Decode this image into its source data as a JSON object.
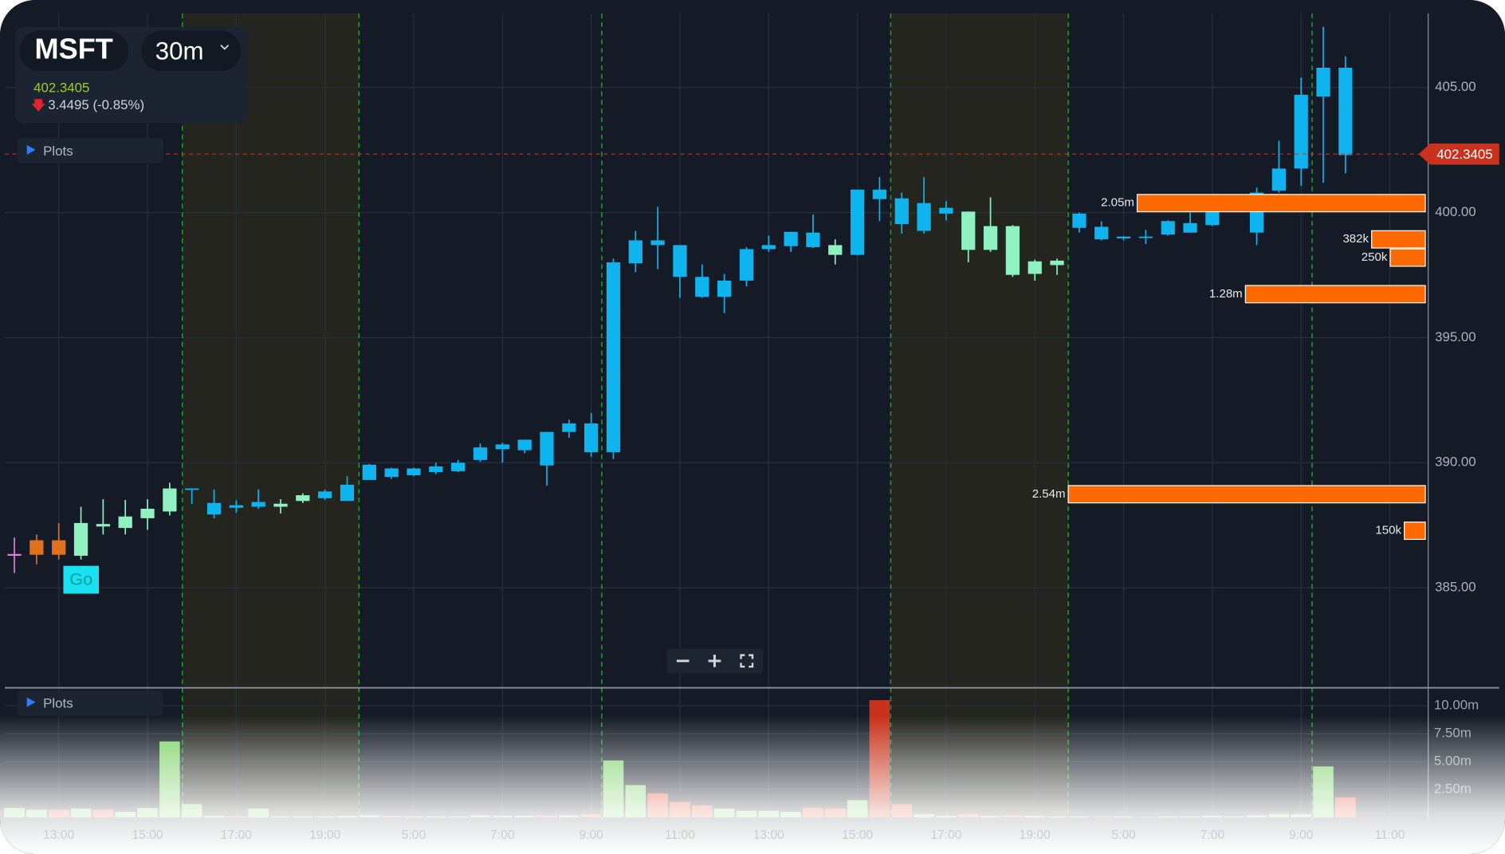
{
  "header": {
    "symbol": "MSFT",
    "interval": "30m",
    "change": "3.4495 (-0.85%)"
  },
  "panel_labels": [
    "Plots",
    "Plots"
  ],
  "signal_label": "Go",
  "chart_data": [
    {
      "type": "candlestick",
      "open": [
        386.35,
        386.9,
        386.32,
        386.28,
        387.45,
        387.39,
        387.78,
        388.05,
        388.93,
        388.39,
        388.2,
        388.24,
        388.24,
        388.47,
        388.58,
        388.47,
        389.31,
        389.77,
        389.5,
        389.62,
        389.66,
        390.11,
        390.54,
        390.5,
        391.23,
        391.23,
        391.57,
        390.42,
        397.97,
        398.89,
        398.7,
        397.43,
        396.63,
        397.28,
        398.54,
        398.66,
        399.2,
        398.7,
        398.31,
        400.92,
        400.57,
        400.38,
        400.19,
        400.04,
        398.51,
        399.46,
        397.55,
        397.9,
        399.96,
        399.43,
        398.97,
        399.04,
        399.12,
        399.2,
        399.5,
        400.15,
        399.2,
        400.88,
        401.76,
        404.64,
        405.79,
        null,
        null
      ],
      "high": [
        387.01,
        387.13,
        387.59,
        388.24,
        388.54,
        388.51,
        388.54,
        389.2,
        388.97,
        388.93,
        388.5,
        388.93,
        388.54,
        388.78,
        388.93,
        389.46,
        389.95,
        389.8,
        389.8,
        390.0,
        390.11,
        390.77,
        390.8,
        390.92,
        391.23,
        391.72,
        391.99,
        398.16,
        399.27,
        400.23,
        398.7,
        397.93,
        397.55,
        398.62,
        399.08,
        399.23,
        399.92,
        398.93,
        400.92,
        401.42,
        400.8,
        401.42,
        400.46,
        400.04,
        400.61,
        399.5,
        398.12,
        398.16,
        400.0,
        399.65,
        399.06,
        399.31,
        399.69,
        400.0,
        400.42,
        400.61,
        401.0,
        402.87,
        405.4,
        407.43,
        406.25,
        null,
        null
      ],
      "low": [
        385.59,
        385.94,
        386.13,
        386.13,
        387.13,
        387.13,
        387.32,
        387.89,
        388.35,
        387.78,
        388.0,
        388.16,
        387.97,
        388.39,
        388.51,
        388.47,
        389.31,
        389.35,
        389.46,
        389.54,
        389.62,
        390.04,
        390.0,
        390.38,
        389.08,
        391.0,
        390.23,
        390.15,
        397.62,
        397.74,
        396.59,
        396.59,
        395.98,
        397.05,
        398.43,
        398.43,
        398.58,
        397.93,
        398.28,
        399.66,
        399.16,
        399.16,
        399.69,
        398.01,
        398.43,
        397.43,
        397.28,
        397.51,
        399.2,
        398.89,
        398.89,
        398.74,
        399.08,
        399.2,
        399.46,
        400.04,
        398.7,
        400.8,
        401.07,
        401.19,
        401.57,
        null,
        null
      ],
      "close": [
        386.28,
        386.32,
        386.9,
        387.59,
        387.55,
        387.85,
        388.16,
        388.97,
        388.97,
        387.93,
        388.3,
        388.43,
        388.36,
        388.7,
        388.85,
        389.12,
        389.92,
        389.43,
        389.77,
        389.85,
        390.0,
        390.61,
        390.73,
        390.92,
        389.89,
        391.57,
        390.42,
        398.01,
        398.89,
        398.7,
        397.43,
        396.63,
        397.28,
        398.54,
        398.7,
        399.23,
        398.62,
        398.31,
        400.92,
        400.54,
        399.54,
        399.27,
        399.96,
        398.51,
        399.46,
        397.51,
        398.05,
        398.08,
        399.39,
        398.93,
        399.04,
        399.04,
        399.66,
        399.58,
        400.34,
        400.38,
        400.8,
        401.76,
        404.71,
        405.79,
        402.3,
        null,
        null
      ],
      "colors": [
        "#e07ee6",
        "#e0721f",
        "#e0721f",
        "#8ff0c0",
        "#8ff0c0",
        "#8ff0c0",
        "#8ff0c0",
        "#8ff0c0",
        "#0fb4ee",
        "#0fb4ee",
        "#0fb4ee",
        "#0fb4ee",
        "#8ff0c0",
        "#8ff0c0",
        "#0fb4ee",
        "#0fb4ee",
        "#0fb4ee",
        "#0fb4ee",
        "#0fb4ee",
        "#0fb4ee",
        "#0fb4ee",
        "#0fb4ee",
        "#0fb4ee",
        "#0fb4ee",
        "#0fb4ee",
        "#0fb4ee",
        "#0fb4ee",
        "#0fb4ee",
        "#0fb4ee",
        "#0fb4ee",
        "#0fb4ee",
        "#0fb4ee",
        "#0fb4ee",
        "#0fb4ee",
        "#0fb4ee",
        "#0fb4ee",
        "#0fb4ee",
        "#8ff0c0",
        "#0fb4ee",
        "#0fb4ee",
        "#0fb4ee",
        "#0fb4ee",
        "#0fb4ee",
        "#8ff0c0",
        "#8ff0c0",
        "#8ff0c0",
        "#8ff0c0",
        "#8ff0c0",
        "#0fb4ee",
        "#0fb4ee",
        "#0fb4ee",
        "#0fb4ee",
        "#0fb4ee",
        "#0fb4ee",
        "#0fb4ee",
        "#0fb4ee",
        "#0fb4ee",
        "#0fb4ee",
        "#0fb4ee",
        "#0fb4ee",
        "#0fb4ee",
        null,
        null
      ],
      "ylim": [
        381,
        408.5
      ],
      "yticks": [
        {
          "value": 385,
          "label": "385.00"
        },
        {
          "value": 390,
          "label": "390.00"
        },
        {
          "value": 395,
          "label": "395.00"
        },
        {
          "value": 400,
          "label": "400.00"
        },
        {
          "value": 405,
          "label": "405.00"
        }
      ],
      "grid": true,
      "current_price": 402.3405,
      "current_price_color": "#c8321e",
      "order_book": {
        "color": "#ff6a00",
        "price": [
          400.38,
          398.93,
          398.2,
          396.74,
          388.74,
          387.28
        ],
        "values": [
          2050000,
          382000,
          250000,
          1280000,
          2540000,
          150000
        ],
        "value_labels": [
          "2.05m",
          "382k",
          "250k",
          "1.28m",
          "2.54m",
          "150k"
        ]
      }
    },
    {
      "type": "bar",
      "categories": [
        null,
        null,
        "13:00",
        null,
        null,
        null,
        "15:00",
        null,
        null,
        null,
        "17:00",
        null,
        null,
        null,
        "19:00",
        null,
        null,
        null,
        "5:00",
        null,
        null,
        null,
        "7:00",
        null,
        null,
        null,
        "9:00",
        null,
        null,
        null,
        "11:00",
        null,
        null,
        null,
        "13:00",
        null,
        null,
        null,
        "15:00",
        null,
        null,
        null,
        "17:00",
        null,
        null,
        null,
        "19:00",
        null,
        null,
        null,
        "5:00",
        null,
        null,
        null,
        "7:00",
        null,
        null,
        null,
        "9:00",
        null,
        null,
        null,
        "11:00"
      ],
      "values": [
        0.86,
        0.7,
        0.7,
        0.8,
        0.7,
        0.5,
        0.86,
        6.8,
        1.2,
        0.15,
        0.1,
        0.8,
        0.1,
        0.1,
        0.1,
        0.15,
        0.2,
        0.15,
        0.1,
        0.1,
        0.1,
        0.2,
        0.15,
        0.15,
        0.2,
        0.2,
        0.3,
        5.1,
        2.9,
        2.15,
        1.4,
        1.1,
        0.8,
        0.6,
        0.6,
        0.5,
        0.86,
        0.8,
        1.55,
        10.5,
        1.2,
        0.3,
        0.15,
        0.3,
        0.15,
        0.2,
        0.15,
        0.1,
        0.1,
        0.1,
        0.1,
        0.05,
        0.1,
        0.1,
        0.15,
        0.1,
        0.2,
        0.3,
        0.3,
        4.57,
        1.8,
        null,
        null
      ],
      "colors": [
        "#7fd36a",
        "#7fd36a",
        "#e24a2e",
        "#7fd36a",
        "#e24a2e",
        "#7fd36a",
        "#7fd36a",
        "#7fd36a",
        "#7fd36a",
        "#7fd36a",
        "#e24a2e",
        "#7fd36a",
        "#7fd36a",
        "#7fd36a",
        "#7fd36a",
        "#7fd36a",
        "#7fd36a",
        "#e24a2e",
        "#7fd36a",
        "#7fd36a",
        "#7fd36a",
        "#7fd36a",
        "#7fd36a",
        "#7fd36a",
        "#e24a2e",
        "#7fd36a",
        "#e24a2e",
        "#7fd36a",
        "#7fd36a",
        "#e24a2e",
        "#e24a2e",
        "#e24a2e",
        "#7fd36a",
        "#7fd36a",
        "#7fd36a",
        "#7fd36a",
        "#e24a2e",
        "#e24a2e",
        "#7fd36a",
        "#c8321a",
        "#e24a2e",
        "#7fd36a",
        "#7fd36a",
        "#e24a2e",
        "#7fd36a",
        "#e24a2e",
        "#7fd36a",
        "#7fd36a",
        "#7fd36a",
        "#e24a2e",
        "#7fd36a",
        "#7fd36a",
        "#7fd36a",
        "#7fd36a",
        "#7fd36a",
        "#7fd36a",
        "#7fd36a",
        "#7fd36a",
        "#7fd36a",
        "#7fd36a",
        "#e24a2e",
        null,
        null
      ],
      "ylim": [
        0,
        11.6
      ],
      "yticks": [
        {
          "value": 2.5,
          "label": "2.50m"
        },
        {
          "value": 5,
          "label": "5.00m"
        },
        {
          "value": 7.5,
          "label": "7.50m"
        },
        {
          "value": 10,
          "label": "10.00m"
        }
      ],
      "grid": true
    }
  ]
}
